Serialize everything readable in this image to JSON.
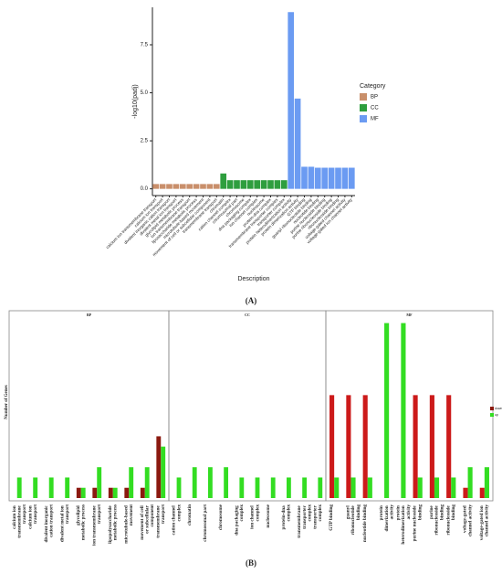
{
  "chart_data": [
    {
      "type": "bar",
      "label": "(A)",
      "xlabel": "Description",
      "ylabel": "-log10(padj)",
      "legend_title": "Category",
      "categories": [
        "calcium ion transmembrane transport",
        "calcium ion transport",
        "divalent inorganic cation transport",
        "divalent metal ion transport",
        "glycolipid metabolic process",
        "ion transmembrane transport",
        "liposaccharide metabolic process",
        "microtubule-based movement",
        "movement of cell or subcellular component",
        "transmembrane transport",
        "chromatin",
        "cation channel complex",
        "chromosomal part",
        "chromosome",
        "dna packaging complex",
        "ion channel complex",
        "nucleosome",
        "protein-dna complex",
        "transmembrane transporter complex",
        "transporter complex",
        "protein heterodimerization activity",
        "protein dimerization activity",
        "GTP binding",
        "guanyl ribonucleotide binding",
        "nucleotide binding",
        "purine nucleoside binding",
        "purine ribonucleoside binding",
        "ribonucleoside binding",
        "voltage-gated channel activity",
        "voltage-gated ion channel activity"
      ],
      "series": [
        {
          "name": "BP",
          "color": "#c98f6b",
          "values": [
            0.25,
            0.25,
            0.25,
            0.25,
            0.25,
            0.25,
            0.25,
            0.25,
            0.25,
            0.25,
            null,
            null,
            null,
            null,
            null,
            null,
            null,
            null,
            null,
            null,
            null,
            null,
            null,
            null,
            null,
            null,
            null,
            null,
            null,
            null
          ]
        },
        {
          "name": "CC",
          "color": "#2e9e3e",
          "values": [
            null,
            null,
            null,
            null,
            null,
            null,
            null,
            null,
            null,
            null,
            0.8,
            0.45,
            0.45,
            0.45,
            0.45,
            0.45,
            0.45,
            0.45,
            0.45,
            0.45,
            null,
            null,
            null,
            null,
            null,
            null,
            null,
            null,
            null,
            null
          ]
        },
        {
          "name": "MF",
          "color": "#6b9bf2",
          "values": [
            null,
            null,
            null,
            null,
            null,
            null,
            null,
            null,
            null,
            null,
            null,
            null,
            null,
            null,
            null,
            null,
            null,
            null,
            null,
            null,
            9.2,
            4.7,
            1.15,
            1.15,
            1.1,
            1.1,
            1.1,
            1.1,
            1.1,
            1.1
          ]
        }
      ],
      "ylim": [
        -0.35,
        9.45
      ],
      "yticks": [
        {
          "value": 0,
          "label": "0.0"
        },
        {
          "value": 2.5,
          "label": "2.5"
        },
        {
          "value": 5,
          "label": "5.0"
        },
        {
          "value": 7.5,
          "label": "7.5"
        }
      ]
    },
    {
      "type": "facet_bar",
      "label": "(B)",
      "ylabel": "Number of Genes",
      "ylim": [
        0,
        18.2
      ],
      "panels": [
        {
          "title": "BP",
          "categories": [
            "calcium ion transmembrane transport",
            "calcium ion transport",
            "divalent inorganic cation transport",
            "divalent metal ion transport",
            "glycolipid metabolic process",
            "ion transmembrane transport",
            "lipopolysaccharide metabolic process",
            "microtubule-based movement",
            "movement of cell or subcellular component",
            "transmembrane transport"
          ],
          "series": [
            {
              "name": "down",
              "color": "#8b1a10",
              "values": [
                0,
                0,
                0,
                0,
                1,
                1,
                1,
                1,
                1,
                6
              ]
            },
            {
              "name": "up",
              "color": "#33dd22",
              "values": [
                2,
                2,
                2,
                2,
                1,
                3,
                1,
                3,
                3,
                5
              ]
            }
          ]
        },
        {
          "title": "CC",
          "categories": [
            "cation channel complex",
            "chromatin",
            "chromosomal part",
            "chromosome",
            "dna packaging complex",
            "ion channel complex",
            "nucleosome",
            "protein-dna complex",
            "transmembrane transporter complex",
            "transporter complex"
          ],
          "series": [
            {
              "name": "down",
              "color": "#8b1a10",
              "values": [
                0,
                0,
                0,
                0,
                0,
                0,
                0,
                0,
                0,
                0
              ]
            },
            {
              "name": "up",
              "color": "#33dd22",
              "values": [
                2,
                3,
                3,
                3,
                2,
                2,
                2,
                2,
                2,
                2
              ]
            }
          ]
        },
        {
          "title": "MF",
          "categories": [
            "GTP binding",
            "guanyl ribonucleotide binding",
            "nucleotide binding",
            "protein dimerization activity",
            "protein heterodimerization activity",
            "purine nucleoside binding",
            "purine ribonucleoside binding",
            "ribonucleoside binding",
            "voltage-gated channel activity",
            "voltage-gated ion channel activity"
          ],
          "series": [
            {
              "name": "down",
              "color": "#cc1a1a",
              "values": [
                10,
                10,
                10,
                0,
                0,
                10,
                10,
                10,
                1,
                1
              ]
            },
            {
              "name": "up",
              "color": "#33dd22",
              "values": [
                2,
                2,
                2,
                17,
                17,
                2,
                2,
                2,
                3,
                3
              ]
            }
          ]
        }
      ]
    }
  ]
}
